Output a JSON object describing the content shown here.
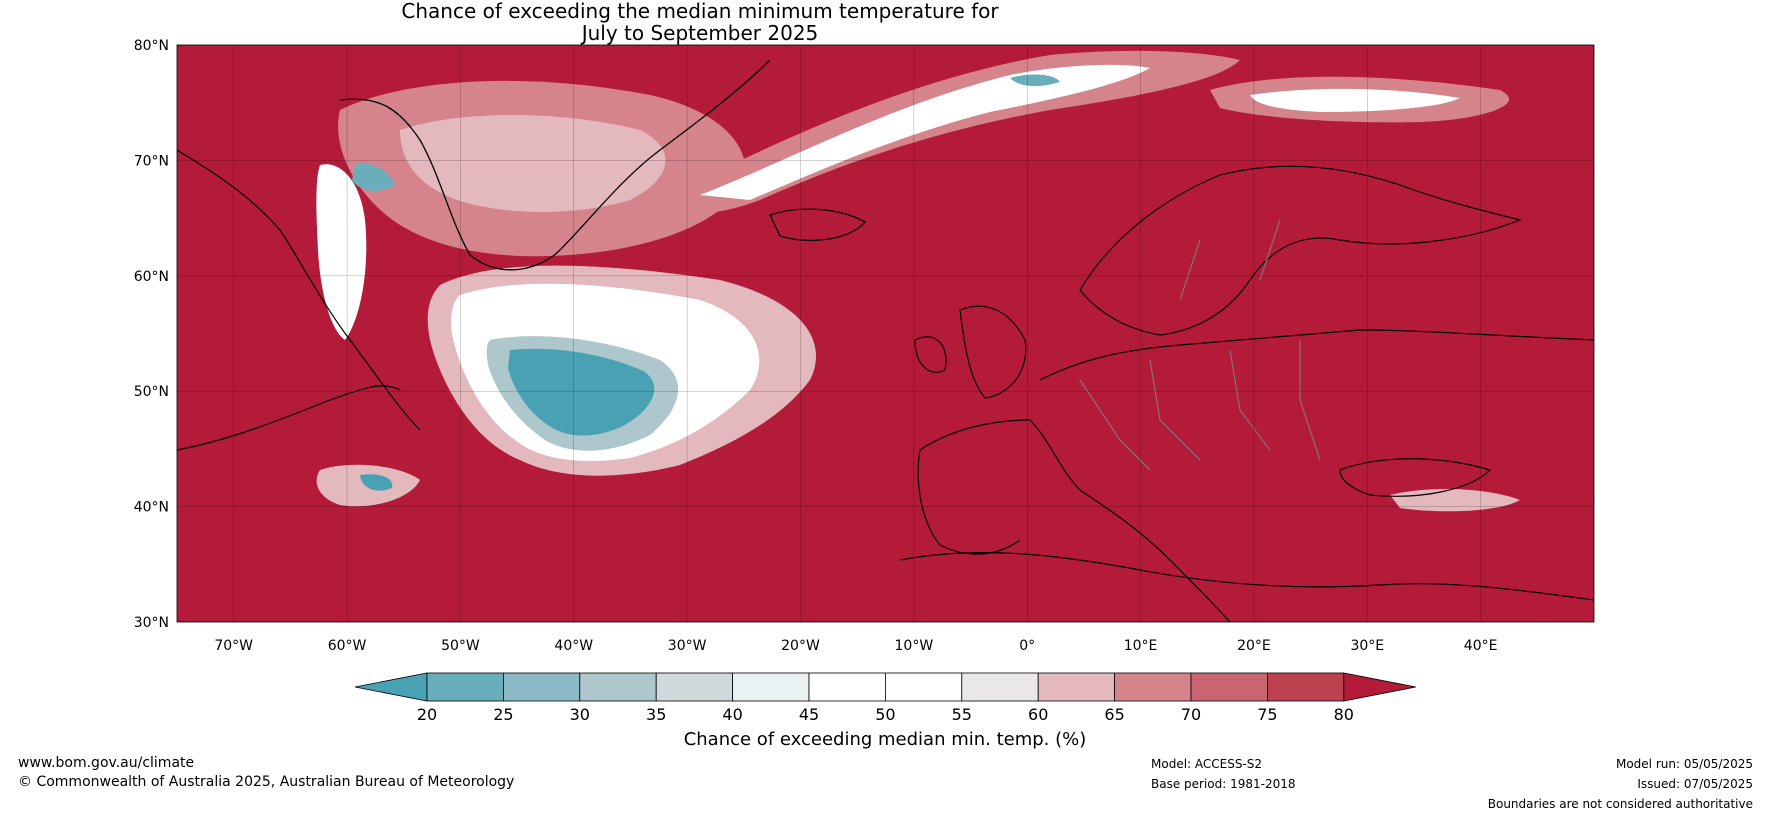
{
  "title_line1": "Chance of exceeding the median minimum temperature for",
  "title_line2": "July to September 2025",
  "lat_labels": [
    "80°N",
    "70°N",
    "60°N",
    "50°N",
    "40°N",
    "30°N"
  ],
  "lon_labels": [
    "70°W",
    "60°W",
    "50°W",
    "40°W",
    "30°W",
    "20°W",
    "10°W",
    "0°",
    "10°E",
    "20°E",
    "30°E",
    "40°E"
  ],
  "colorbar": {
    "ticks": [
      "20",
      "25",
      "30",
      "35",
      "40",
      "45",
      "50",
      "55",
      "60",
      "65",
      "70",
      "75",
      "80"
    ],
    "colors": [
      "#48a2b4",
      "#6aaebb",
      "#8bb9c4",
      "#adc7cc",
      "#cfd9dc",
      "#eaf1f2",
      "#ffffff",
      "#ffffff",
      "#ebe8ea",
      "#e4b9be",
      "#d5848c",
      "#c86570",
      "#bd4250",
      "#b31b38"
    ],
    "label": "Chance of exceeding median min. temp. (%)"
  },
  "map_colors": {
    "land_fill": "#b31b38",
    "coast": "#000000",
    "border": "#808080",
    "ocean_grid": "#000000"
  },
  "footer": {
    "website": "www.bom.gov.au/climate",
    "copyright": "© Commonwealth of Australia 2025, Australian Bureau of Meteorology",
    "model": "Model: ACCESS-S2",
    "base_period": "Base period: 1981-2018",
    "model_run": "Model run: 05/05/2025",
    "issued": "Issued: 07/05/2025",
    "disclaimer": "Boundaries are not considered authoritative"
  }
}
